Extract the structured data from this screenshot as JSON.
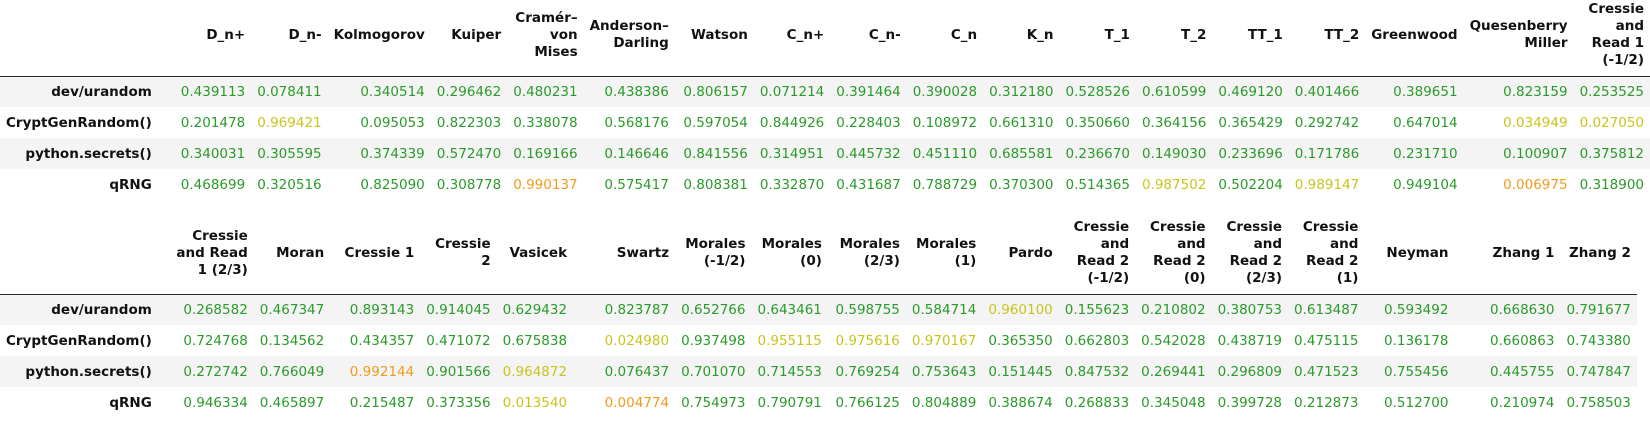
{
  "tables": [
    {
      "columns": [
        "D_n+",
        "D_n-",
        "Kolmogorov",
        "Kuiper",
        "Cramér–von Mises",
        "Anderson–Darling",
        "Watson",
        "C_n+",
        "C_n-",
        "C_n",
        "K_n",
        "T_1",
        "T_2",
        "TT_1",
        "TT_2",
        "Greenwood",
        "Quesenberry Miller",
        "Cressie and Read 1 (-1/2)"
      ],
      "rows": [
        {
          "label": "dev/urandom",
          "cells": [
            {
              "v": "0.439113",
              "c": "g"
            },
            {
              "v": "0.078411",
              "c": "g"
            },
            {
              "v": "0.340514",
              "c": "g"
            },
            {
              "v": "0.296462",
              "c": "g"
            },
            {
              "v": "0.480231",
              "c": "g"
            },
            {
              "v": "0.438386",
              "c": "g"
            },
            {
              "v": "0.806157",
              "c": "g"
            },
            {
              "v": "0.071214",
              "c": "g"
            },
            {
              "v": "0.391464",
              "c": "g"
            },
            {
              "v": "0.390028",
              "c": "g"
            },
            {
              "v": "0.312180",
              "c": "g"
            },
            {
              "v": "0.528526",
              "c": "g"
            },
            {
              "v": "0.610599",
              "c": "g"
            },
            {
              "v": "0.469120",
              "c": "g"
            },
            {
              "v": "0.401466",
              "c": "g"
            },
            {
              "v": "0.389651",
              "c": "g"
            },
            {
              "v": "0.823159",
              "c": "g"
            },
            {
              "v": "0.253525",
              "c": "g"
            }
          ]
        },
        {
          "label": "CryptGenRandom()",
          "cells": [
            {
              "v": "0.201478",
              "c": "g"
            },
            {
              "v": "0.969421",
              "c": "y"
            },
            {
              "v": "0.095053",
              "c": "g"
            },
            {
              "v": "0.822303",
              "c": "g"
            },
            {
              "v": "0.338078",
              "c": "g"
            },
            {
              "v": "0.568176",
              "c": "g"
            },
            {
              "v": "0.597054",
              "c": "g"
            },
            {
              "v": "0.844926",
              "c": "g"
            },
            {
              "v": "0.228403",
              "c": "g"
            },
            {
              "v": "0.108972",
              "c": "g"
            },
            {
              "v": "0.661310",
              "c": "g"
            },
            {
              "v": "0.350660",
              "c": "g"
            },
            {
              "v": "0.364156",
              "c": "g"
            },
            {
              "v": "0.365429",
              "c": "g"
            },
            {
              "v": "0.292742",
              "c": "g"
            },
            {
              "v": "0.647014",
              "c": "g"
            },
            {
              "v": "0.034949",
              "c": "y"
            },
            {
              "v": "0.027050",
              "c": "y"
            }
          ]
        },
        {
          "label": "python.secrets()",
          "cells": [
            {
              "v": "0.340031",
              "c": "g"
            },
            {
              "v": "0.305595",
              "c": "g"
            },
            {
              "v": "0.374339",
              "c": "g"
            },
            {
              "v": "0.572470",
              "c": "g"
            },
            {
              "v": "0.169166",
              "c": "g"
            },
            {
              "v": "0.146646",
              "c": "g"
            },
            {
              "v": "0.841556",
              "c": "g"
            },
            {
              "v": "0.314951",
              "c": "g"
            },
            {
              "v": "0.445732",
              "c": "g"
            },
            {
              "v": "0.451110",
              "c": "g"
            },
            {
              "v": "0.685581",
              "c": "g"
            },
            {
              "v": "0.236670",
              "c": "g"
            },
            {
              "v": "0.149030",
              "c": "g"
            },
            {
              "v": "0.233696",
              "c": "g"
            },
            {
              "v": "0.171786",
              "c": "g"
            },
            {
              "v": "0.231710",
              "c": "g"
            },
            {
              "v": "0.100907",
              "c": "g"
            },
            {
              "v": "0.375812",
              "c": "g"
            }
          ]
        },
        {
          "label": "qRNG",
          "cells": [
            {
              "v": "0.468699",
              "c": "g"
            },
            {
              "v": "0.320516",
              "c": "g"
            },
            {
              "v": "0.825090",
              "c": "g"
            },
            {
              "v": "0.308778",
              "c": "g"
            },
            {
              "v": "0.990137",
              "c": "o"
            },
            {
              "v": "0.575417",
              "c": "g"
            },
            {
              "v": "0.808381",
              "c": "g"
            },
            {
              "v": "0.332870",
              "c": "g"
            },
            {
              "v": "0.431687",
              "c": "g"
            },
            {
              "v": "0.788729",
              "c": "g"
            },
            {
              "v": "0.370300",
              "c": "g"
            },
            {
              "v": "0.514365",
              "c": "g"
            },
            {
              "v": "0.987502",
              "c": "y"
            },
            {
              "v": "0.502204",
              "c": "g"
            },
            {
              "v": "0.989147",
              "c": "y"
            },
            {
              "v": "0.949104",
              "c": "g"
            },
            {
              "v": "0.006975",
              "c": "o"
            },
            {
              "v": "0.318900",
              "c": "g"
            }
          ]
        }
      ]
    },
    {
      "columns": [
        "Cressie and Read 1 (2/3)",
        "Moran",
        "Cressie 1",
        "Cressie 2",
        "Vasicek",
        "Swartz",
        "Morales (-1/2)",
        "Morales (0)",
        "Morales (2/3)",
        "Morales (1)",
        "Pardo",
        "Cressie and Read 2 (-1/2)",
        "Cressie and Read 2 (0)",
        "Cressie and Read 2 (2/3)",
        "Cressie and Read 2 (1)",
        "Neyman",
        "Zhang 1",
        "Zhang 2"
      ],
      "rows": [
        {
          "label": "dev/urandom",
          "cells": [
            {
              "v": "0.268582",
              "c": "g"
            },
            {
              "v": "0.467347",
              "c": "g"
            },
            {
              "v": "0.893143",
              "c": "g"
            },
            {
              "v": "0.914045",
              "c": "g"
            },
            {
              "v": "0.629432",
              "c": "g"
            },
            {
              "v": "0.823787",
              "c": "g"
            },
            {
              "v": "0.652766",
              "c": "g"
            },
            {
              "v": "0.643461",
              "c": "g"
            },
            {
              "v": "0.598755",
              "c": "g"
            },
            {
              "v": "0.584714",
              "c": "g"
            },
            {
              "v": "0.960100",
              "c": "y"
            },
            {
              "v": "0.155623",
              "c": "g"
            },
            {
              "v": "0.210802",
              "c": "g"
            },
            {
              "v": "0.380753",
              "c": "g"
            },
            {
              "v": "0.613487",
              "c": "g"
            },
            {
              "v": "0.593492",
              "c": "g"
            },
            {
              "v": "0.668630",
              "c": "g"
            },
            {
              "v": "0.791677",
              "c": "g"
            }
          ]
        },
        {
          "label": "CryptGenRandom()",
          "cells": [
            {
              "v": "0.724768",
              "c": "g"
            },
            {
              "v": "0.134562",
              "c": "g"
            },
            {
              "v": "0.434357",
              "c": "g"
            },
            {
              "v": "0.471072",
              "c": "g"
            },
            {
              "v": "0.675838",
              "c": "g"
            },
            {
              "v": "0.024980",
              "c": "y"
            },
            {
              "v": "0.937498",
              "c": "g"
            },
            {
              "v": "0.955115",
              "c": "y"
            },
            {
              "v": "0.975616",
              "c": "y"
            },
            {
              "v": "0.970167",
              "c": "y"
            },
            {
              "v": "0.365350",
              "c": "g"
            },
            {
              "v": "0.662803",
              "c": "g"
            },
            {
              "v": "0.542028",
              "c": "g"
            },
            {
              "v": "0.438719",
              "c": "g"
            },
            {
              "v": "0.475115",
              "c": "g"
            },
            {
              "v": "0.136178",
              "c": "g"
            },
            {
              "v": "0.660863",
              "c": "g"
            },
            {
              "v": "0.743380",
              "c": "g"
            }
          ]
        },
        {
          "label": "python.secrets()",
          "cells": [
            {
              "v": "0.272742",
              "c": "g"
            },
            {
              "v": "0.766049",
              "c": "g"
            },
            {
              "v": "0.992144",
              "c": "o"
            },
            {
              "v": "0.901566",
              "c": "g"
            },
            {
              "v": "0.964872",
              "c": "y"
            },
            {
              "v": "0.076437",
              "c": "g"
            },
            {
              "v": "0.701070",
              "c": "g"
            },
            {
              "v": "0.714553",
              "c": "g"
            },
            {
              "v": "0.769254",
              "c": "g"
            },
            {
              "v": "0.753643",
              "c": "g"
            },
            {
              "v": "0.151445",
              "c": "g"
            },
            {
              "v": "0.847532",
              "c": "g"
            },
            {
              "v": "0.269441",
              "c": "g"
            },
            {
              "v": "0.296809",
              "c": "g"
            },
            {
              "v": "0.471523",
              "c": "g"
            },
            {
              "v": "0.755456",
              "c": "g"
            },
            {
              "v": "0.445755",
              "c": "g"
            },
            {
              "v": "0.747847",
              "c": "g"
            }
          ]
        },
        {
          "label": "qRNG",
          "cells": [
            {
              "v": "0.946334",
              "c": "g"
            },
            {
              "v": "0.465897",
              "c": "g"
            },
            {
              "v": "0.215487",
              "c": "g"
            },
            {
              "v": "0.373356",
              "c": "g"
            },
            {
              "v": "0.013540",
              "c": "y"
            },
            {
              "v": "0.004774",
              "c": "o"
            },
            {
              "v": "0.754973",
              "c": "g"
            },
            {
              "v": "0.790791",
              "c": "g"
            },
            {
              "v": "0.766125",
              "c": "g"
            },
            {
              "v": "0.804889",
              "c": "g"
            },
            {
              "v": "0.388674",
              "c": "g"
            },
            {
              "v": "0.268833",
              "c": "g"
            },
            {
              "v": "0.345048",
              "c": "g"
            },
            {
              "v": "0.399728",
              "c": "g"
            },
            {
              "v": "0.212873",
              "c": "g"
            },
            {
              "v": "0.512700",
              "c": "g"
            },
            {
              "v": "0.210974",
              "c": "g"
            },
            {
              "v": "0.758503",
              "c": "g"
            }
          ]
        }
      ]
    }
  ],
  "colors": {
    "g": "#2a9a2a",
    "y": "#c9c41c",
    "o": "#f29a1b"
  }
}
